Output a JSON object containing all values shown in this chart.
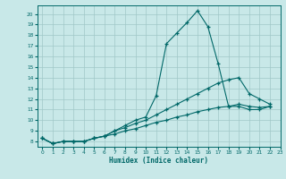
{
  "xlabel": "Humidex (Indice chaleur)",
  "background_color": "#c8e8e8",
  "grid_color": "#a0c8c8",
  "line_color": "#006868",
  "xlim": [
    -0.5,
    23
  ],
  "ylim": [
    7.5,
    20.8
  ],
  "yticks": [
    8,
    9,
    10,
    11,
    12,
    13,
    14,
    15,
    16,
    17,
    18,
    19,
    20
  ],
  "xticks": [
    0,
    1,
    2,
    3,
    4,
    5,
    6,
    7,
    8,
    9,
    10,
    11,
    12,
    13,
    14,
    15,
    16,
    17,
    18,
    19,
    20,
    21,
    22,
    23
  ],
  "line1_x": [
    0,
    1,
    2,
    3,
    4,
    5,
    6,
    7,
    8,
    9,
    10,
    11,
    12,
    13,
    14,
    15,
    16,
    17,
    18,
    19,
    20,
    21,
    22
  ],
  "line1_y": [
    8.3,
    7.8,
    8.0,
    8.0,
    8.0,
    8.3,
    8.5,
    9.0,
    9.5,
    10.0,
    10.3,
    12.3,
    17.2,
    18.2,
    19.2,
    20.3,
    18.8,
    15.3,
    11.3,
    11.3,
    11.0,
    11.0,
    11.3
  ],
  "line2_x": [
    0,
    1,
    2,
    3,
    4,
    5,
    6,
    7,
    8,
    9,
    10,
    11,
    12,
    13,
    14,
    15,
    16,
    17,
    18,
    19,
    20,
    21,
    22
  ],
  "line2_y": [
    8.3,
    7.8,
    8.0,
    8.0,
    8.0,
    8.3,
    8.5,
    9.0,
    9.3,
    9.7,
    10.0,
    10.5,
    11.0,
    11.5,
    12.0,
    12.5,
    13.0,
    13.5,
    13.8,
    14.0,
    12.5,
    12.0,
    11.5
  ],
  "line3_x": [
    0,
    1,
    2,
    3,
    4,
    5,
    6,
    7,
    8,
    9,
    10,
    11,
    12,
    13,
    14,
    15,
    16,
    17,
    18,
    19,
    20,
    21,
    22
  ],
  "line3_y": [
    8.3,
    7.8,
    8.0,
    8.0,
    8.0,
    8.3,
    8.5,
    8.7,
    9.0,
    9.2,
    9.5,
    9.8,
    10.0,
    10.3,
    10.5,
    10.8,
    11.0,
    11.2,
    11.3,
    11.5,
    11.3,
    11.2,
    11.3
  ]
}
